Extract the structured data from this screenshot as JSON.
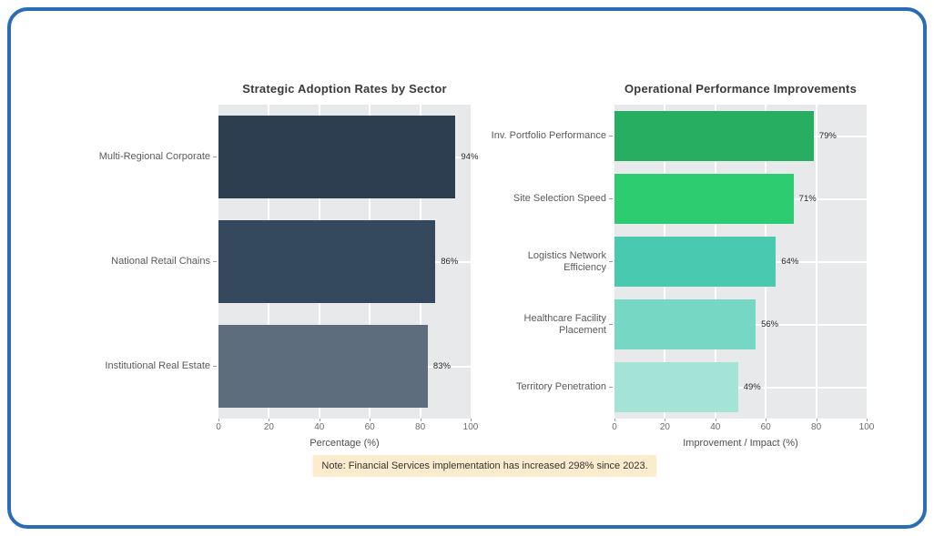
{
  "frame": {
    "border_color": "#2a6db5",
    "background": "#ffffff"
  },
  "note": {
    "text": "Note: Financial Services implementation has increased 298% since 2023.",
    "background": "#fbeccd"
  },
  "chart_data": [
    {
      "type": "bar",
      "orientation": "horizontal",
      "title": "Strategic Adoption Rates by Sector",
      "categories": [
        "Multi-Regional Corporate",
        "National Retail Chains",
        "Institutional Real Estate"
      ],
      "values": [
        94,
        86,
        83
      ],
      "value_labels": [
        "94%",
        "86%",
        "83%"
      ],
      "bar_colors": [
        "#2c3e50",
        "#34495e",
        "#5d6d7e"
      ],
      "xlabel": "Percentage (%)",
      "xlim": [
        0,
        100
      ],
      "xticks": [
        0,
        20,
        40,
        60,
        80,
        100
      ],
      "plot_background": "#e8e9ea",
      "grid": "white gridlines, vertical at x ticks and horizontal at category centers",
      "legend": "none"
    },
    {
      "type": "bar",
      "orientation": "horizontal",
      "title": "Operational Performance Improvements",
      "categories": [
        "Inv. Portfolio Performance",
        "Site Selection Speed",
        "Logistics Network Efficiency",
        "Healthcare Facility Placement",
        "Territory Penetration"
      ],
      "values": [
        79,
        71,
        64,
        56,
        49
      ],
      "value_labels": [
        "79%",
        "71%",
        "64%",
        "56%",
        "49%"
      ],
      "bar_colors": [
        "#27ae60",
        "#2ecc71",
        "#48c9b0",
        "#76d7c4",
        "#a3e4d7"
      ],
      "xlabel": "Improvement / Impact (%)",
      "xlim": [
        0,
        100
      ],
      "xticks": [
        0,
        20,
        40,
        60,
        80,
        100
      ],
      "plot_background": "#e8e9ea",
      "grid": "white gridlines, vertical at x ticks and horizontal at category centers",
      "legend": "none"
    }
  ]
}
